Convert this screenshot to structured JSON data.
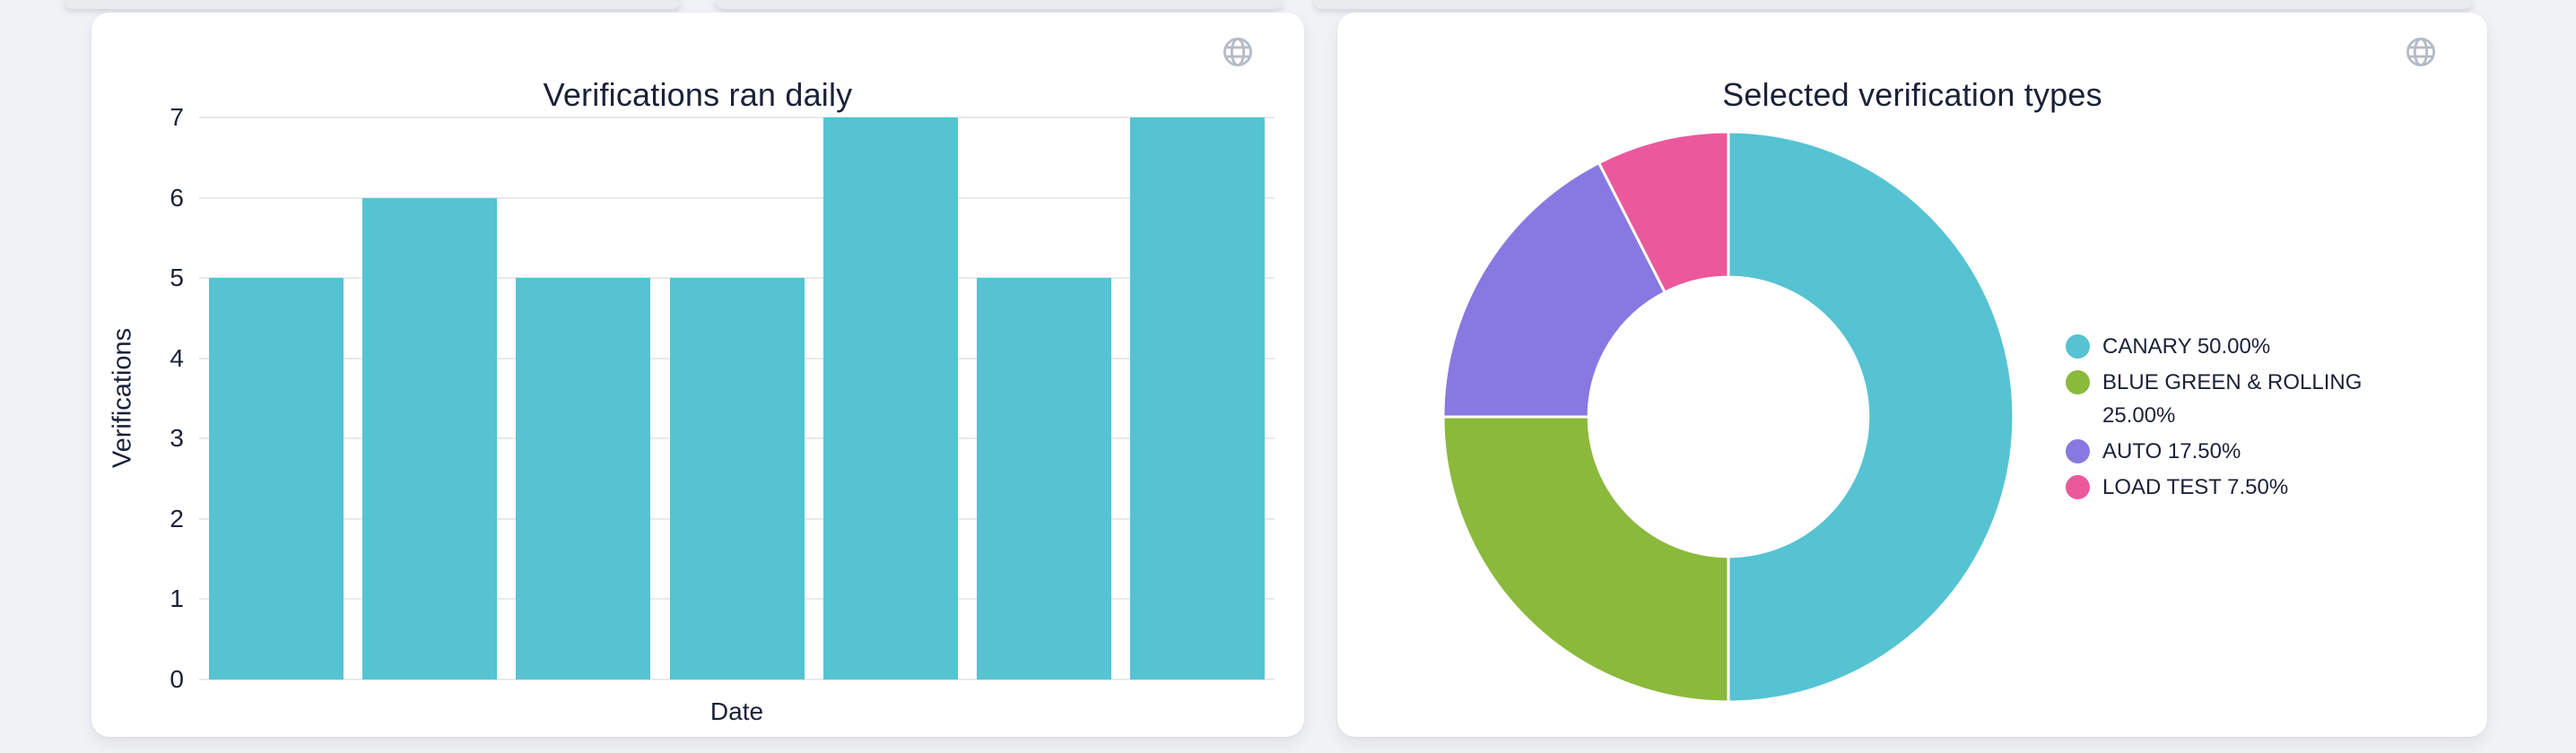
{
  "theme": {
    "page_background": "#f1f2f5",
    "card_background": "#ffffff",
    "text_color": "#1a2138",
    "gridline_color": "#e7e9ec",
    "globe_icon_color": "#b5bbc6"
  },
  "cards": [
    {
      "title": "Verifications ran daily",
      "toolbar_icon": "globe-icon"
    },
    {
      "title": "Selected verification types",
      "toolbar_icon": "globe-icon"
    }
  ],
  "chart_data": [
    {
      "type": "bar",
      "title": "Verifications ran daily",
      "xlabel": "Date",
      "ylabel": "Verifications",
      "categories": [
        "",
        "",
        "",
        "",
        "",
        "",
        ""
      ],
      "values": [
        5,
        6,
        5,
        5,
        7,
        5,
        7
      ],
      "ylim": [
        0,
        7
      ],
      "yticks": [
        0,
        1,
        2,
        3,
        4,
        5,
        6,
        7
      ],
      "bar_color": "#55c3d2",
      "grid": true,
      "x_tick_labels_visible": false,
      "legend_position": "none"
    },
    {
      "type": "pie",
      "subtype": "donut",
      "title": "Selected verification types",
      "slices": [
        {
          "label": "CANARY",
          "pct": 50.0,
          "color": "#55c3d2",
          "legend": "CANARY 50.00%"
        },
        {
          "label": "BLUE GREEN & ROLLING",
          "pct": 25.0,
          "color": "#8bb93b",
          "legend": "BLUE GREEN & ROLLING 25.00%"
        },
        {
          "label": "AUTO",
          "pct": 17.5,
          "color": "#8779e1",
          "legend": "AUTO 17.50%"
        },
        {
          "label": "LOAD TEST",
          "pct": 7.5,
          "color": "#ec589c",
          "legend": "LOAD TEST 7.50%"
        }
      ],
      "start_angle_deg": 0,
      "direction": "clockwise",
      "inner_radius_ratio": 0.49,
      "slice_border_color": "#ffffff",
      "legend_position": "right"
    }
  ]
}
